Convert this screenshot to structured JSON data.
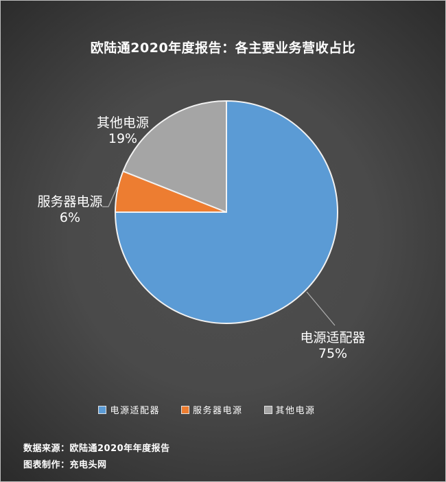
{
  "chart_data": {
    "type": "pie",
    "title": "欧陆通2020年度报告：各主要业务营收占比",
    "categories": [
      "电源适配器",
      "服务器电源",
      "其他电源"
    ],
    "values": [
      75,
      6,
      19
    ],
    "unit": "%",
    "slices": [
      {
        "name": "电源适配器",
        "value": 75,
        "pct_label": "75%",
        "color": "#5B9BD5"
      },
      {
        "name": "服务器电源",
        "value": 6,
        "pct_label": "6%",
        "color": "#ED7D31"
      },
      {
        "name": "其他电源",
        "value": 19,
        "pct_label": "19%",
        "color": "#A5A5A5"
      }
    ],
    "start_angle_deg": 0,
    "direction": "clockwise",
    "data_labels": "outside: category name + percent",
    "legend_position": "bottom"
  },
  "footer": {
    "source_line": "数据来源：欧陆通2020年年度报告",
    "maker_line": "图表制作：充电头网"
  },
  "style": {
    "background_center": "#4a4a4a",
    "background_edge": "#242424",
    "text_color": "#ffffff",
    "slice_border_color": "#f2f2f2",
    "leader_line_color": "#b0b0b0"
  }
}
